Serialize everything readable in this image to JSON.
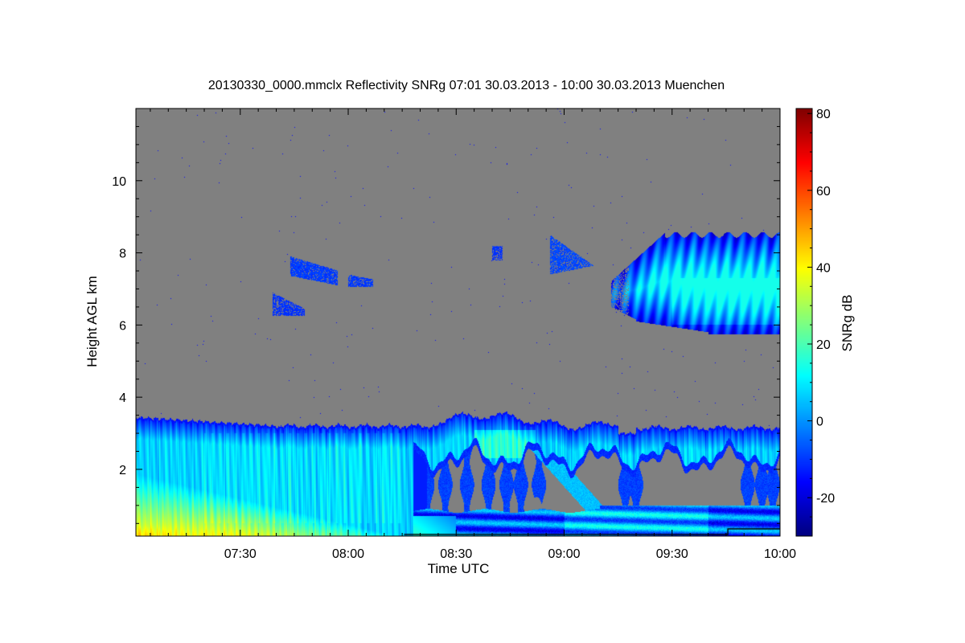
{
  "chart_data": {
    "type": "heatmap",
    "title": "20130330_0000.mmclx Reflectivity SNRg   07:01 30.03.2013 - 10:00 30.03.2013 Muenchen",
    "xlabel": "Time UTC",
    "ylabel": "Height AGL km",
    "colorbar_label": "SNRg dB",
    "x_unit": "minutes after 07:00 UTC",
    "xlim": [
      1,
      180
    ],
    "ylim": [
      0.15,
      12
    ],
    "clim": [
      -30,
      81.3
    ],
    "colormap": "jet",
    "background_color": "#808080",
    "x_ticks": [
      {
        "value": 30,
        "label": "07:30"
      },
      {
        "value": 60,
        "label": "08:00"
      },
      {
        "value": 90,
        "label": "08:30"
      },
      {
        "value": 120,
        "label": "09:00"
      },
      {
        "value": 150,
        "label": "09:30"
      },
      {
        "value": 180,
        "label": "10:00"
      }
    ],
    "x_minor_step": 5,
    "y_ticks": [
      {
        "value": 2,
        "label": "2"
      },
      {
        "value": 4,
        "label": "4"
      },
      {
        "value": 6,
        "label": "6"
      },
      {
        "value": 8,
        "label": "8"
      },
      {
        "value": 10,
        "label": "10"
      }
    ],
    "y_minor_step": 0.5,
    "colorbar_ticks": [
      {
        "value": -20,
        "label": "-20"
      },
      {
        "value": 0,
        "label": "0"
      },
      {
        "value": 20,
        "label": "20"
      },
      {
        "value": 40,
        "label": "40"
      },
      {
        "value": 60,
        "label": "60"
      },
      {
        "value": 80,
        "label": "80"
      }
    ],
    "colorbar_minor_step": 5,
    "features": [
      {
        "name": "low cloud layer",
        "t_range": [
          1,
          180
        ],
        "h_range": [
          0.15,
          3.5
        ],
        "snr_range": [
          -15,
          48
        ]
      },
      {
        "name": "cirrus patch",
        "t_range": [
          44,
          57
        ],
        "h_range": [
          7.1,
          7.9
        ],
        "snr": -12
      },
      {
        "name": "cirrus patch",
        "t_range": [
          60,
          67
        ],
        "h_range": [
          7.05,
          7.4
        ],
        "snr": -12
      },
      {
        "name": "cirrus patch",
        "t_range": [
          39,
          48
        ],
        "h_range": [
          6.25,
          6.9
        ],
        "snr": -12
      },
      {
        "name": "cirrus patch",
        "t_range": [
          100,
          103
        ],
        "h_range": [
          7.8,
          8.2
        ],
        "snr": -12
      },
      {
        "name": "cirrus patch",
        "t_range": [
          116,
          129
        ],
        "h_range": [
          7.4,
          8.5
        ],
        "snr": -10
      },
      {
        "name": "cirrus layer",
        "t_range": [
          133,
          180
        ],
        "h_range": [
          5.7,
          8.6
        ],
        "snr_range": [
          -15,
          12
        ]
      }
    ]
  }
}
